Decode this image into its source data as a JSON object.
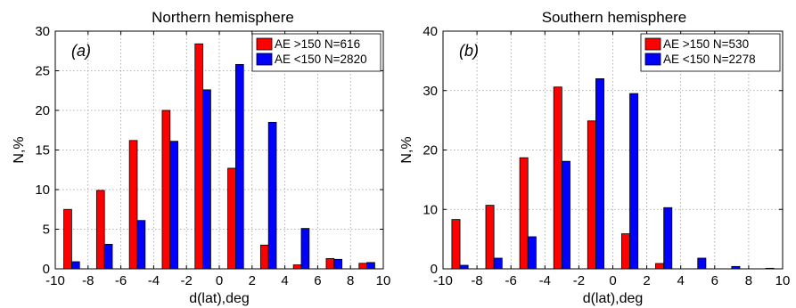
{
  "chart_data": [
    {
      "type": "bar",
      "title": "Northern hemisphere",
      "panel_label": "(a)",
      "xlabel": "d(lat),deg",
      "ylabel": "N,%",
      "xlim": [
        -10,
        10
      ],
      "ylim": [
        0,
        30
      ],
      "xticks": [
        -10,
        -8,
        -6,
        -4,
        -2,
        0,
        2,
        4,
        6,
        8,
        10
      ],
      "yticks": [
        0,
        5,
        10,
        15,
        20,
        25,
        30
      ],
      "grid": true,
      "legend_position": "top-right",
      "x": [
        -9,
        -7,
        -5,
        -3,
        -1,
        1,
        3,
        5,
        7,
        9
      ],
      "series": [
        {
          "name": "AE >150 N=616",
          "color": "#ff0000",
          "values": [
            7.5,
            9.9,
            16.2,
            20.0,
            28.4,
            12.7,
            3.0,
            0.5,
            1.3,
            0.7
          ]
        },
        {
          "name": "AE <150 N=2820",
          "color": "#0000ff",
          "values": [
            0.9,
            3.1,
            6.1,
            16.1,
            22.6,
            25.8,
            18.5,
            5.1,
            1.2,
            0.8
          ]
        }
      ]
    },
    {
      "type": "bar",
      "title": "Southern hemisphere",
      "panel_label": "(b)",
      "xlabel": "d(lat),deg",
      "ylabel": "N,%",
      "xlim": [
        -10,
        10
      ],
      "ylim": [
        0,
        40
      ],
      "xticks": [
        -10,
        -8,
        -6,
        -4,
        -2,
        0,
        2,
        4,
        6,
        8,
        10
      ],
      "yticks": [
        0,
        10,
        20,
        30,
        40
      ],
      "grid": true,
      "legend_position": "top-right",
      "x": [
        -9,
        -7,
        -5,
        -3,
        -1,
        1,
        3,
        5,
        7,
        9
      ],
      "series": [
        {
          "name": "AE >150 N=530",
          "color": "#ff0000",
          "values": [
            8.3,
            10.7,
            18.7,
            30.6,
            24.9,
            5.9,
            0.9,
            0,
            0,
            0
          ]
        },
        {
          "name": "AE <150 N=2278",
          "color": "#0000ff",
          "values": [
            0.6,
            1.8,
            5.4,
            18.1,
            32.0,
            29.5,
            10.3,
            1.8,
            0.4,
            0.1
          ]
        }
      ]
    }
  ]
}
